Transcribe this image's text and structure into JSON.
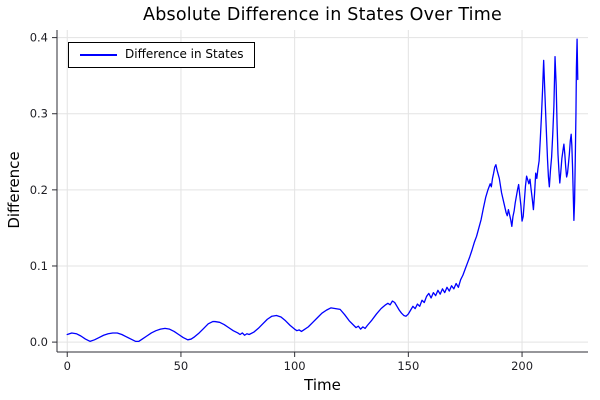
{
  "title": "Absolute Difference in States Over Time",
  "axes": {
    "xlabel": "Time",
    "ylabel": "Difference"
  },
  "legend": {
    "entries": [
      {
        "label": "Difference in States",
        "color": "#0000ff"
      }
    ]
  },
  "colors": {
    "series": "#0000ff",
    "grid": "#e3e3e3",
    "spine": "#2e2e35",
    "tick_label": "#1e1e24",
    "background": "#ffffff"
  },
  "chart_data": {
    "type": "line",
    "title": "Absolute Difference in States Over Time",
    "xlabel": "Time",
    "ylabel": "Difference",
    "xlim": [
      -4.5,
      229
    ],
    "ylim": [
      -0.013,
      0.41
    ],
    "xticks": [
      0,
      50,
      100,
      150,
      200
    ],
    "xtick_labels": [
      "0",
      "50",
      "100",
      "150",
      "200"
    ],
    "yticks": [
      0.0,
      0.1,
      0.2,
      0.3,
      0.4
    ],
    "ytick_labels": [
      "0.0",
      "0.1",
      "0.2",
      "0.3",
      "0.4"
    ],
    "grid": true,
    "legend_position": "top-left",
    "series": [
      {
        "name": "Difference in States",
        "color": "#0000ff",
        "x": [
          0,
          2,
          4,
          6,
          8,
          10,
          12,
          14,
          16,
          18,
          20,
          22,
          24,
          26,
          28,
          30,
          31.5,
          33,
          35,
          37,
          39,
          41,
          43,
          45,
          47,
          49,
          51,
          53,
          54.5,
          56,
          58,
          60,
          62,
          64,
          65,
          67,
          69,
          71,
          73,
          75,
          76,
          77,
          78,
          79,
          80,
          82,
          84,
          86,
          88,
          90,
          92,
          94,
          96,
          98,
          100,
          101,
          102,
          103,
          104,
          106,
          108,
          110,
          112,
          114,
          116,
          118,
          120,
          122,
          124,
          126,
          127,
          128,
          129,
          130,
          131,
          132,
          134,
          136,
          138,
          140,
          141,
          142,
          143,
          144,
          145,
          146,
          147,
          148,
          149,
          150,
          151,
          152,
          153,
          154,
          155,
          156,
          157,
          158,
          159,
          160,
          161,
          162,
          163,
          164,
          165,
          166,
          167,
          168,
          169,
          170,
          171,
          172,
          173,
          174,
          175,
          176,
          177,
          178,
          179,
          180,
          181,
          182,
          183,
          184,
          185,
          186,
          186.5,
          187,
          187.5,
          188,
          188.5,
          189,
          190,
          191,
          192,
          193,
          193.5,
          194,
          195,
          195.5,
          196,
          196.5,
          197,
          198,
          198.5,
          199,
          199.5,
          200,
          200.5,
          201,
          201.5,
          202,
          202.5,
          203,
          203.5,
          204,
          204.5,
          205,
          205.5,
          206,
          206.5,
          207,
          207.5,
          208,
          208.5,
          209,
          209.5,
          210,
          210.4,
          210.8,
          211.2,
          211.6,
          212,
          212.5,
          213,
          213.5,
          214,
          214.5,
          215,
          215.4,
          215.8,
          216.2,
          216.6,
          217,
          217.5,
          218,
          218.4,
          218.8,
          219.2,
          219.6,
          220,
          220.4,
          220.8,
          221.2,
          221.6,
          221.9,
          222.2,
          222.5,
          222.8,
          223.1,
          223.4,
          223.7,
          223.9,
          224.2,
          224.5
        ],
        "y": [
          0.01,
          0.012,
          0.011,
          0.008,
          0.004,
          0.001,
          0.003,
          0.006,
          0.009,
          0.011,
          0.012,
          0.012,
          0.01,
          0.007,
          0.004,
          0.001,
          0.001,
          0.004,
          0.008,
          0.012,
          0.015,
          0.017,
          0.018,
          0.017,
          0.014,
          0.01,
          0.006,
          0.003,
          0.004,
          0.007,
          0.012,
          0.018,
          0.024,
          0.027,
          0.027,
          0.026,
          0.023,
          0.019,
          0.015,
          0.012,
          0.01,
          0.012,
          0.009,
          0.011,
          0.01,
          0.013,
          0.018,
          0.024,
          0.03,
          0.034,
          0.035,
          0.033,
          0.028,
          0.022,
          0.017,
          0.015,
          0.016,
          0.014,
          0.016,
          0.02,
          0.026,
          0.032,
          0.038,
          0.042,
          0.045,
          0.044,
          0.043,
          0.036,
          0.028,
          0.022,
          0.019,
          0.021,
          0.017,
          0.02,
          0.018,
          0.022,
          0.029,
          0.037,
          0.044,
          0.049,
          0.051,
          0.049,
          0.054,
          0.052,
          0.047,
          0.042,
          0.038,
          0.035,
          0.034,
          0.037,
          0.042,
          0.047,
          0.044,
          0.05,
          0.047,
          0.055,
          0.052,
          0.06,
          0.064,
          0.058,
          0.065,
          0.061,
          0.068,
          0.063,
          0.07,
          0.065,
          0.072,
          0.067,
          0.074,
          0.07,
          0.077,
          0.072,
          0.082,
          0.088,
          0.096,
          0.104,
          0.112,
          0.121,
          0.131,
          0.139,
          0.15,
          0.161,
          0.176,
          0.19,
          0.2,
          0.208,
          0.204,
          0.215,
          0.222,
          0.23,
          0.233,
          0.226,
          0.215,
          0.196,
          0.183,
          0.17,
          0.166,
          0.174,
          0.161,
          0.152,
          0.165,
          0.172,
          0.183,
          0.2,
          0.207,
          0.193,
          0.179,
          0.159,
          0.165,
          0.185,
          0.205,
          0.218,
          0.213,
          0.208,
          0.214,
          0.2,
          0.188,
          0.174,
          0.195,
          0.222,
          0.215,
          0.228,
          0.238,
          0.265,
          0.295,
          0.33,
          0.37,
          0.33,
          0.299,
          0.269,
          0.24,
          0.217,
          0.204,
          0.226,
          0.243,
          0.273,
          0.31,
          0.375,
          0.338,
          0.286,
          0.247,
          0.226,
          0.209,
          0.222,
          0.241,
          0.252,
          0.26,
          0.247,
          0.23,
          0.217,
          0.222,
          0.234,
          0.247,
          0.264,
          0.273,
          0.258,
          0.23,
          0.195,
          0.16,
          0.185,
          0.24,
          0.3,
          0.36,
          0.398,
          0.345
        ]
      }
    ]
  }
}
